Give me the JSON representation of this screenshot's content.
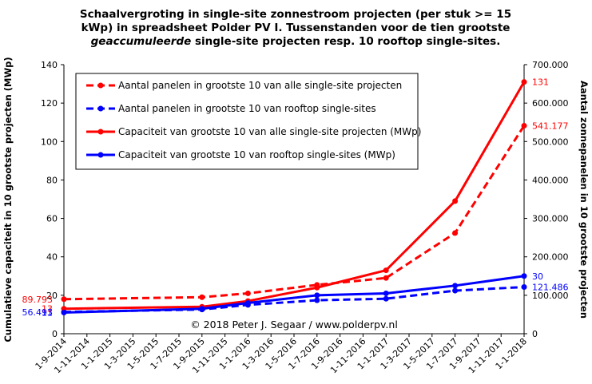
{
  "chart_data": {
    "type": "line",
    "title_lines": [
      [
        {
          "text": "Schaalvergroting in single-site zonnestroom projecten (per stuk >= 15",
          "italic": false
        }
      ],
      [
        {
          "text": "kWp) in spreadsheet Polder PV I. Tussenstanden voor de tien grootste",
          "italic": false
        }
      ],
      [
        {
          "text": "geaccumuleerde",
          "italic": true
        },
        {
          "text": " single-site projecten resp. 10 rooftop single-sites.",
          "italic": false
        }
      ]
    ],
    "ylabel_left": "Cumulatieve capaciteit in 10 grootste projecten (MWp)",
    "ylabel_right": "Aantal zonnepanelen in 10 grootste projecten",
    "credit": "© 2018 Peter J. Segaar / www.polderpv.nl",
    "x_categories": [
      "1-9-2014",
      "1-11-2014",
      "1-1-2015",
      "1-3-2015",
      "1-5-2015",
      "1-7-2015",
      "1-9-2015",
      "1-11-2015",
      "1-1-2016",
      "1-3-2016",
      "1-5-2016",
      "1-7-2016",
      "1-9-2016",
      "1-11-2016",
      "1-1-2017",
      "1-3-2017",
      "1-5-2017",
      "1-7-2017",
      "1-9-2017",
      "1-11-2017",
      "1-1-2018"
    ],
    "y_left": {
      "min": 0,
      "max": 140,
      "ticks": [
        "0",
        "20",
        "40",
        "60",
        "80",
        "100",
        "120",
        "140"
      ]
    },
    "y_right": {
      "min": 0,
      "max": 700000,
      "ticks": [
        "0",
        "100.000",
        "200.000",
        "300.000",
        "400.000",
        "500.000",
        "600.000",
        "700.000"
      ]
    },
    "series": [
      {
        "name": "Aantal panelen in grootste 10 van alle single-site projecten",
        "axis": "right",
        "color": "#ff0000",
        "dashed": true,
        "x": [
          "1-9-2014",
          "1-9-2015",
          "1-1-2016",
          "1-7-2016",
          "1-1-2017",
          "1-7-2017",
          "1-1-2018"
        ],
        "values": [
          89793,
          95000,
          105000,
          127000,
          145000,
          262000,
          541177
        ]
      },
      {
        "name": "Aantal panelen in grootste 10 van rooftop single-sites",
        "axis": "right",
        "color": "#0000ff",
        "dashed": true,
        "x": [
          "1-9-2014",
          "1-9-2015",
          "1-1-2016",
          "1-7-2016",
          "1-1-2017",
          "1-7-2017",
          "1-1-2018"
        ],
        "values": [
          56493,
          63000,
          75000,
          87000,
          91000,
          112000,
          121486
        ]
      },
      {
        "name": "Capaciteit van grootste 10 van alle single-site projecten (MWp)",
        "axis": "left",
        "color": "#ff0000",
        "dashed": false,
        "x": [
          "1-9-2014",
          "1-9-2015",
          "1-1-2016",
          "1-7-2016",
          "1-1-2017",
          "1-7-2017",
          "1-1-2018"
        ],
        "values": [
          13,
          14,
          17,
          24,
          33,
          69,
          131
        ]
      },
      {
        "name": "Capaciteit van grootste 10 van rooftop single-sites (MWp)",
        "axis": "left",
        "color": "#0000ff",
        "dashed": false,
        "x": [
          "1-9-2014",
          "1-9-2015",
          "1-1-2016",
          "1-7-2016",
          "1-1-2017",
          "1-7-2017",
          "1-1-2018"
        ],
        "values": [
          11,
          13,
          16,
          20,
          21,
          25,
          30
        ]
      }
    ],
    "data_labels": [
      {
        "text": "89.793",
        "color": "#ff0000",
        "side": "left",
        "axis": "right",
        "value": 89793
      },
      {
        "text": "56.493",
        "color": "#0000ff",
        "side": "left",
        "axis": "right",
        "value": 56493
      },
      {
        "text": "13",
        "color": "#ff0000",
        "side": "left",
        "axis": "left",
        "value": 13
      },
      {
        "text": "11",
        "color": "#0000ff",
        "side": "left",
        "axis": "left",
        "value": 11
      },
      {
        "text": "131",
        "color": "#ff0000",
        "side": "right",
        "axis": "left",
        "value": 131
      },
      {
        "text": "541.177",
        "color": "#ff0000",
        "side": "right",
        "axis": "right",
        "value": 541177
      },
      {
        "text": "30",
        "color": "#0000ff",
        "side": "right",
        "axis": "left",
        "value": 30
      },
      {
        "text": "121.486",
        "color": "#0000ff",
        "side": "right",
        "axis": "right",
        "value": 121486
      }
    ],
    "legend_position": "top-left",
    "grid": false
  }
}
